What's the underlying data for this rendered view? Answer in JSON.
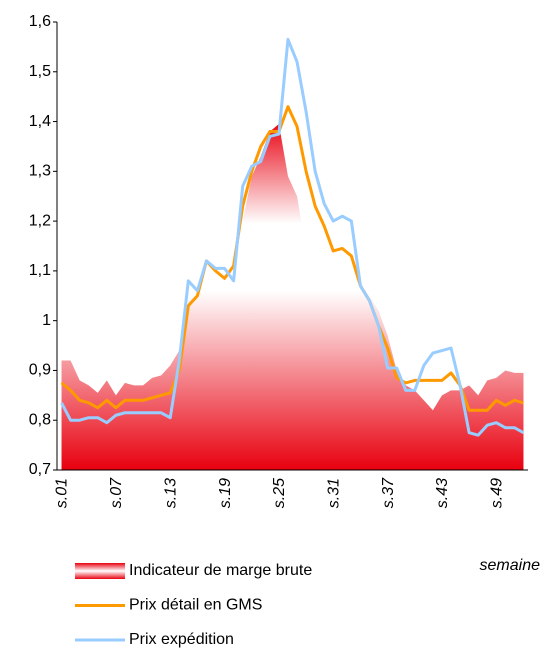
{
  "chart_data": {
    "type": "line",
    "x_label": "semaine",
    "categories": [
      "s.01",
      null,
      null,
      null,
      null,
      null,
      "s.07",
      null,
      null,
      null,
      null,
      null,
      "s.13",
      null,
      null,
      null,
      null,
      null,
      "s.19",
      null,
      null,
      null,
      null,
      null,
      "s.25",
      null,
      null,
      null,
      null,
      null,
      "s.31",
      null,
      null,
      null,
      null,
      null,
      "s.37",
      null,
      null,
      null,
      null,
      null,
      "s.43",
      null,
      null,
      null,
      null,
      null,
      "s.49",
      null,
      null,
      null
    ],
    "ylim": [
      0.7,
      1.6
    ],
    "yticks": [
      {
        "value": 0.7,
        "label": "0,7"
      },
      {
        "value": 0.8,
        "label": "0,8"
      },
      {
        "value": 0.9,
        "label": "0,9"
      },
      1,
      {
        "value": 1.1,
        "label": "1,1"
      },
      {
        "value": 1.2,
        "label": "1,2"
      },
      {
        "value": 1.3,
        "label": "1,3"
      },
      {
        "value": 1.4,
        "label": "1,4"
      },
      {
        "value": 1.5,
        "label": "1,5"
      },
      {
        "value": 1.6,
        "label": "1,6"
      }
    ],
    "grid": false,
    "series": [
      {
        "name": "Indicateur de marge brute",
        "kind": "area",
        "color": "#e8000f",
        "values": [
          0.92,
          0.92,
          0.88,
          0.87,
          0.855,
          0.88,
          0.85,
          0.875,
          0.87,
          0.87,
          0.885,
          0.89,
          0.91,
          0.94,
          1.04,
          1.05,
          1.11,
          1.1,
          1.09,
          1.11,
          1.2,
          1.29,
          1.33,
          1.38,
          1.395,
          1.29,
          1.25,
          1.14,
          1.14,
          1.13,
          1.09,
          1.09,
          1.09,
          1.08,
          1.05,
          1.02,
          0.97,
          0.9,
          0.87,
          0.86,
          0.84,
          0.82,
          0.85,
          0.86,
          0.86,
          0.87,
          0.85,
          0.88,
          0.885,
          0.9,
          0.895,
          0.895
        ]
      },
      {
        "name": "Prix détail en GMS",
        "kind": "line",
        "color": "#ff9900",
        "values": [
          0.875,
          0.86,
          0.84,
          0.835,
          0.825,
          0.84,
          0.825,
          0.84,
          0.84,
          0.84,
          0.845,
          0.85,
          0.855,
          0.9,
          1.03,
          1.05,
          1.12,
          1.1,
          1.085,
          1.11,
          1.23,
          1.3,
          1.35,
          1.38,
          1.38,
          1.43,
          1.39,
          1.3,
          1.23,
          1.19,
          1.14,
          1.145,
          1.13,
          1.07,
          1.04,
          0.99,
          0.945,
          0.885,
          0.875,
          0.88,
          0.88,
          0.88,
          0.88,
          0.895,
          0.87,
          0.82,
          0.82,
          0.82,
          0.84,
          0.83,
          0.84,
          0.835
        ]
      },
      {
        "name": "Prix expédition",
        "kind": "line",
        "color": "#99ccff",
        "values": [
          0.835,
          0.8,
          0.8,
          0.805,
          0.805,
          0.795,
          0.81,
          0.815,
          0.815,
          0.815,
          0.815,
          0.815,
          0.805,
          0.92,
          1.08,
          1.06,
          1.12,
          1.105,
          1.105,
          1.08,
          1.27,
          1.31,
          1.32,
          1.37,
          1.375,
          1.565,
          1.52,
          1.42,
          1.3,
          1.235,
          1.2,
          1.21,
          1.2,
          1.07,
          1.04,
          0.99,
          0.905,
          0.905,
          0.86,
          0.86,
          0.91,
          0.935,
          0.94,
          0.945,
          0.87,
          0.775,
          0.77,
          0.79,
          0.795,
          0.785,
          0.785,
          0.775
        ]
      }
    ]
  }
}
